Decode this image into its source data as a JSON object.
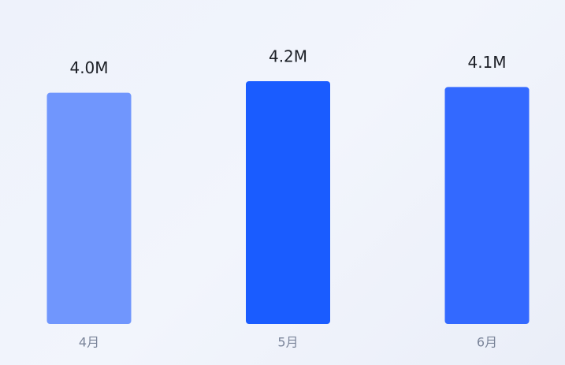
{
  "chart_data": {
    "type": "bar",
    "categories": [
      "4月",
      "5月",
      "6月"
    ],
    "values": [
      4.0,
      4.2,
      4.1
    ],
    "value_labels": [
      "4.0M",
      "4.2M",
      "4.1M"
    ],
    "colors": [
      "#7096fd",
      "#1a5cff",
      "#3369ff"
    ]
  }
}
